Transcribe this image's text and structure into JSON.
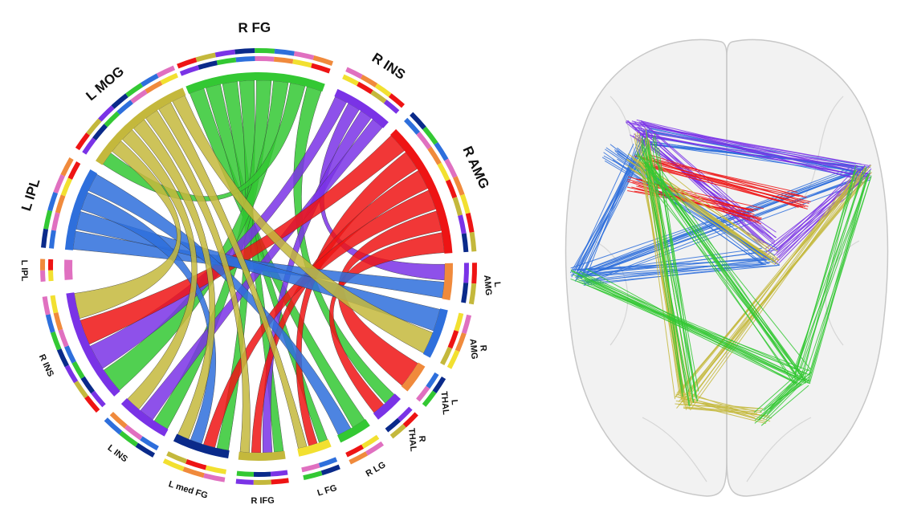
{
  "chord": {
    "segments": [
      {
        "label": [
          "R FG"
        ]
      },
      {
        "label": [
          "R INS"
        ]
      },
      {
        "label": [
          "R AMG"
        ]
      },
      {
        "label": [
          "L",
          "AMG"
        ]
      },
      {
        "label": [
          "R",
          "AMG"
        ]
      },
      {
        "label": [
          "L",
          "THAL"
        ]
      },
      {
        "label": [
          "R",
          "THAL"
        ]
      },
      {
        "label": [
          "R LG"
        ]
      },
      {
        "label": [
          "L FG"
        ]
      },
      {
        "label": [
          "R IFG"
        ]
      },
      {
        "label": [
          "L med FG"
        ]
      },
      {
        "label": [
          "L INS"
        ]
      },
      {
        "label": [
          "R INS"
        ]
      },
      {
        "label": [
          "L IPL"
        ]
      },
      {
        "label": [
          "L IPL"
        ]
      },
      {
        "label": [
          "L MOG"
        ]
      }
    ]
  }
}
